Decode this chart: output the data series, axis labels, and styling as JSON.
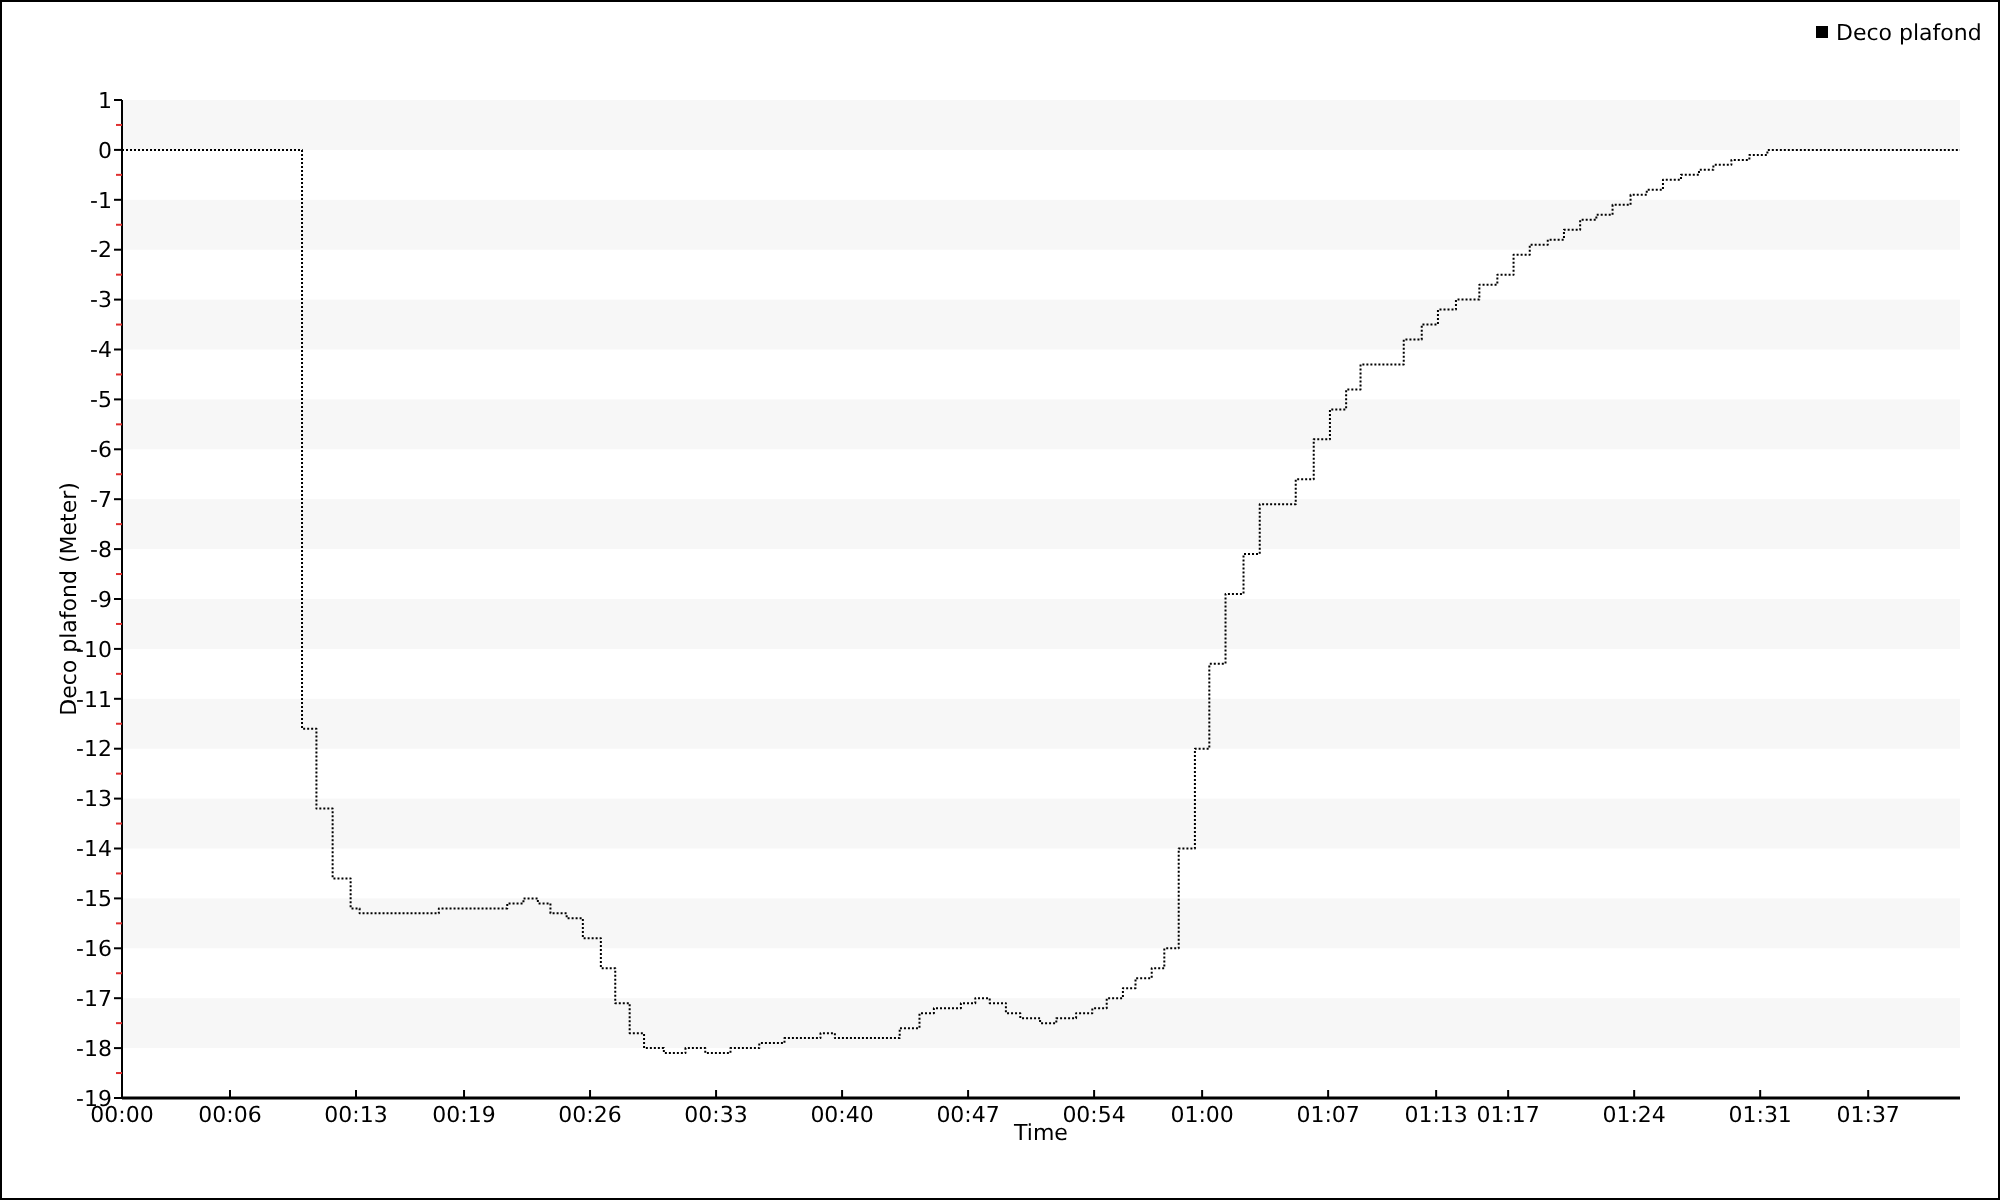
{
  "chart_data": {
    "type": "step",
    "xlabel": "Time",
    "ylabel": "Deco plafond (Meter)",
    "xlim": [
      0,
      102.1
    ],
    "ylim": [
      -19,
      1
    ],
    "xticks": [
      {
        "value": 0,
        "label": "00:00"
      },
      {
        "value": 6,
        "label": "00:06"
      },
      {
        "value": 13,
        "label": "00:13"
      },
      {
        "value": 19,
        "label": "00:19"
      },
      {
        "value": 26,
        "label": "00:26"
      },
      {
        "value": 33,
        "label": "00:33"
      },
      {
        "value": 40,
        "label": "00:40"
      },
      {
        "value": 47,
        "label": "00:47"
      },
      {
        "value": 54,
        "label": "00:54"
      },
      {
        "value": 60,
        "label": "01:00"
      },
      {
        "value": 67,
        "label": "01:07"
      },
      {
        "value": 73,
        "label": "01:13"
      },
      {
        "value": 77,
        "label": "01:17"
      },
      {
        "value": 84,
        "label": "01:24"
      },
      {
        "value": 91,
        "label": "01:31"
      },
      {
        "value": 97,
        "label": "01:37"
      }
    ],
    "yticks": [
      -19,
      -18,
      -17,
      -16,
      -15,
      -14,
      -13,
      -12,
      -11,
      -10,
      -9,
      -8,
      -7,
      -6,
      -5,
      -4,
      -3,
      -2,
      -1,
      0,
      1
    ],
    "legend": "top right",
    "line_style": "dotted",
    "marker": "none",
    "series": [
      {
        "name": "Deco plafond",
        "color": "#000000",
        "x": [
          0,
          10.0,
          10.8,
          11.7,
          12.7,
          13.2,
          17.6,
          21.4,
          22.3,
          23.1,
          23.8,
          24.7,
          25.6,
          26.6,
          27.4,
          28.2,
          29.0,
          30.1,
          31.3,
          32.4,
          33.8,
          35.4,
          36.8,
          38.8,
          39.6,
          43.2,
          44.3,
          45.1,
          46.6,
          47.4,
          48.2,
          49.1,
          49.9,
          51.0,
          51.9,
          53.0,
          53.9,
          54.7,
          55.6,
          56.3,
          57.2,
          57.9,
          58.7,
          59.6,
          60.4,
          61.3,
          62.3,
          63.2,
          65.2,
          66.2,
          67.1,
          68.0,
          68.8,
          71.2,
          72.2,
          73.1,
          74.1,
          75.4,
          76.4,
          77.3,
          78.2,
          79.2,
          80.1,
          81.0,
          81.9,
          82.8,
          83.8,
          84.7,
          85.6,
          86.6,
          87.6,
          88.4,
          89.4,
          90.4,
          91.4,
          102.1
        ],
        "values": [
          0,
          -11.6,
          -13.2,
          -14.6,
          -15.2,
          -15.3,
          -15.2,
          -15.1,
          -15.0,
          -15.1,
          -15.3,
          -15.4,
          -15.8,
          -16.4,
          -17.1,
          -17.7,
          -18.0,
          -18.1,
          -18.0,
          -18.1,
          -18.0,
          -17.9,
          -17.8,
          -17.7,
          -17.8,
          -17.6,
          -17.3,
          -17.2,
          -17.1,
          -17.0,
          -17.1,
          -17.3,
          -17.4,
          -17.5,
          -17.4,
          -17.3,
          -17.2,
          -17.0,
          -16.8,
          -16.6,
          -16.4,
          -16.0,
          -14.0,
          -12.0,
          -10.3,
          -8.9,
          -8.1,
          -7.1,
          -6.6,
          -5.8,
          -5.2,
          -4.8,
          -4.3,
          -3.8,
          -3.5,
          -3.2,
          -3.0,
          -2.7,
          -2.5,
          -2.1,
          -1.9,
          -1.8,
          -1.6,
          -1.4,
          -1.3,
          -1.1,
          -0.9,
          -0.8,
          -0.6,
          -0.5,
          -0.4,
          -0.3,
          -0.2,
          -0.1,
          0,
          0
        ]
      }
    ]
  }
}
